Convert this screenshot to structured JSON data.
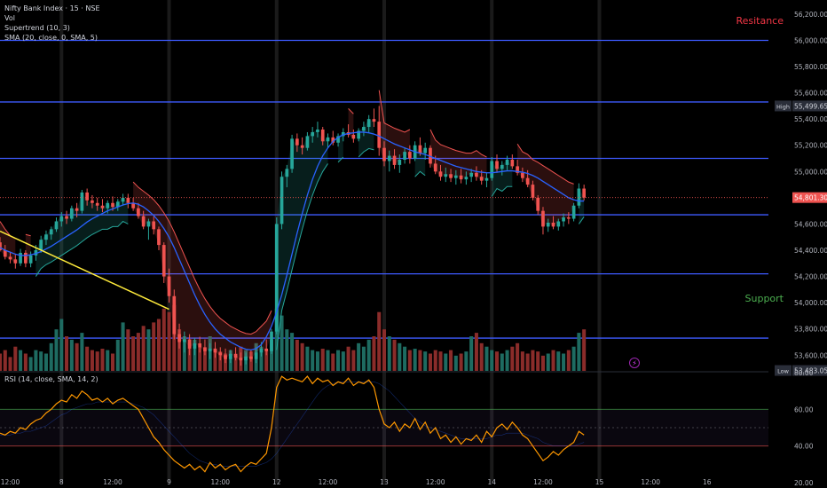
{
  "legend": {
    "symbol": "Nifty Bank Index · 15 · NSE",
    "vol": "Vol",
    "supertrend": "Supertrend (10, 3)",
    "sma": "SMA (20, close, 0, SMA, 5)",
    "rsi": "RSI (14, close, SMA, 14, 2)"
  },
  "annotations": {
    "resistance": "Resitance",
    "support": "Support"
  },
  "colors": {
    "up": "#26a69a",
    "down": "#ef5350",
    "sma": "#2962ff",
    "level": "#3d5afe",
    "trend": "#ffeb3b",
    "rsi": "#ff9800",
    "resistance_text": "#f23645",
    "support_text": "#4caf50"
  },
  "chart_data": {
    "type": "candlestick",
    "symbol": "Nifty Bank Index",
    "interval": "15",
    "exchange": "NSE",
    "y_range": [
      53480,
      56240
    ],
    "x_range": [
      0,
      150
    ],
    "price_ticks": [
      "56,200.00",
      "56,000.00",
      "55,800.00",
      "55,600.00",
      "55,400.00",
      "55,200.00",
      "55,000.00",
      "54,800.00",
      "54,600.00",
      "54,400.00",
      "54,200.00",
      "54,000.00",
      "53,800.00",
      "53,600.00"
    ],
    "price_tick_values": [
      56200,
      56000,
      55800,
      55600,
      55400,
      55200,
      55000,
      54800,
      54600,
      54400,
      54200,
      54000,
      53800,
      53600
    ],
    "x_ticks": [
      {
        "label": "12:00",
        "at": 2
      },
      {
        "label": "8",
        "at": 12
      },
      {
        "label": "12:00",
        "at": 22
      },
      {
        "label": "9",
        "at": 33
      },
      {
        "label": "12:00",
        "at": 43
      },
      {
        "label": "12",
        "at": 54
      },
      {
        "label": "12:00",
        "at": 64
      },
      {
        "label": "13",
        "at": 75
      },
      {
        "label": "12:00",
        "at": 85
      },
      {
        "label": "14",
        "at": 96
      },
      {
        "label": "12:00",
        "at": 106
      },
      {
        "label": "15",
        "at": 117
      },
      {
        "label": "12:00",
        "at": 127
      },
      {
        "label": "16",
        "at": 138
      }
    ],
    "session_lines": [
      12,
      33,
      54,
      75,
      96,
      117
    ],
    "horizontal_levels": [
      56000,
      55530,
      55100,
      54670,
      54220,
      53730
    ],
    "badges": [
      {
        "label": "High",
        "value": "55,499.65",
        "price": 55499.65
      },
      {
        "label": "",
        "value": "54,801.30",
        "price": 54801.3
      },
      {
        "label": "Low",
        "value": "53,483.05",
        "price": 53483.05
      }
    ],
    "trendline": [
      [
        0,
        54545
      ],
      [
        33,
        53950
      ]
    ],
    "candles": [
      [
        54460,
        54500,
        54390,
        54400
      ],
      [
        54400,
        54440,
        54330,
        54350
      ],
      [
        54350,
        54390,
        54300,
        54330
      ],
      [
        54330,
        54370,
        54260,
        54300
      ],
      [
        54300,
        54410,
        54280,
        54380
      ],
      [
        54380,
        54400,
        54270,
        54300
      ],
      [
        54300,
        54390,
        54270,
        54360
      ],
      [
        54360,
        54440,
        54320,
        54400
      ],
      [
        54400,
        54510,
        54380,
        54480
      ],
      [
        54480,
        54550,
        54440,
        54520
      ],
      [
        54520,
        54580,
        54480,
        54560
      ],
      [
        54560,
        54650,
        54540,
        54620
      ],
      [
        54620,
        54690,
        54580,
        54660
      ],
      [
        54660,
        54700,
        54600,
        54640
      ],
      [
        54640,
        54740,
        54620,
        54720
      ],
      [
        54720,
        54760,
        54650,
        54700
      ],
      [
        54700,
        54860,
        54680,
        54840
      ],
      [
        54840,
        54870,
        54740,
        54780
      ],
      [
        54780,
        54820,
        54720,
        54760
      ],
      [
        54760,
        54800,
        54700,
        54740
      ],
      [
        54740,
        54790,
        54690,
        54720
      ],
      [
        54720,
        54780,
        54680,
        54760
      ],
      [
        54760,
        54810,
        54700,
        54730
      ],
      [
        54730,
        54790,
        54700,
        54770
      ],
      [
        54770,
        54830,
        54740,
        54800
      ],
      [
        54800,
        54830,
        54720,
        54760
      ],
      [
        54760,
        54800,
        54700,
        54720
      ],
      [
        54720,
        54760,
        54640,
        54660
      ],
      [
        54660,
        54700,
        54560,
        54580
      ],
      [
        54580,
        54640,
        54480,
        54620
      ],
      [
        54620,
        54660,
        54520,
        54560
      ],
      [
        54560,
        54580,
        54400,
        54440
      ],
      [
        54440,
        54460,
        54150,
        54200
      ],
      [
        54200,
        54260,
        54000,
        54050
      ],
      [
        54050,
        54100,
        53720,
        53760
      ],
      [
        53760,
        53840,
        53650,
        53700
      ],
      [
        53700,
        53780,
        53620,
        53720
      ],
      [
        53720,
        53760,
        53600,
        53650
      ],
      [
        53650,
        53730,
        53600,
        53690
      ],
      [
        53690,
        53740,
        53620,
        53660
      ],
      [
        53660,
        53720,
        53600,
        53630
      ],
      [
        53630,
        53690,
        53570,
        53650
      ],
      [
        53650,
        53700,
        53580,
        53620
      ],
      [
        53620,
        53660,
        53560,
        53600
      ],
      [
        53600,
        53650,
        53540,
        53570
      ],
      [
        53570,
        53640,
        53540,
        53610
      ],
      [
        53610,
        53660,
        53560,
        53580
      ],
      [
        53580,
        53620,
        53520,
        53560
      ],
      [
        53560,
        53620,
        53530,
        53590
      ],
      [
        53590,
        53640,
        53550,
        53570
      ],
      [
        53570,
        53660,
        53540,
        53620
      ],
      [
        53620,
        53700,
        53590,
        53650
      ],
      [
        53650,
        53720,
        53600,
        53630
      ],
      [
        53630,
        53800,
        53610,
        53780
      ],
      [
        53780,
        54650,
        53760,
        54600
      ],
      [
        54600,
        55000,
        54560,
        54960
      ],
      [
        54960,
        55050,
        54880,
        55020
      ],
      [
        55020,
        55280,
        54990,
        55250
      ],
      [
        55250,
        55290,
        55150,
        55200
      ],
      [
        55200,
        55260,
        55130,
        55180
      ],
      [
        55180,
        55300,
        55160,
        55270
      ],
      [
        55270,
        55340,
        55220,
        55300
      ],
      [
        55300,
        55380,
        55260,
        55320
      ],
      [
        55320,
        55340,
        55200,
        55230
      ],
      [
        55230,
        55290,
        55180,
        55260
      ],
      [
        55260,
        55310,
        55200,
        55220
      ],
      [
        55220,
        55290,
        55190,
        55270
      ],
      [
        55270,
        55330,
        55230,
        55300
      ],
      [
        55300,
        55360,
        55260,
        55280
      ],
      [
        55280,
        55320,
        55220,
        55250
      ],
      [
        55250,
        55330,
        55230,
        55310
      ],
      [
        55310,
        55380,
        55270,
        55340
      ],
      [
        55340,
        55430,
        55300,
        55400
      ],
      [
        55400,
        55480,
        55340,
        55380
      ],
      [
        55380,
        55500,
        55120,
        55180
      ],
      [
        55180,
        55230,
        55040,
        55080
      ],
      [
        55080,
        55160,
        55000,
        55120
      ],
      [
        55120,
        55170,
        55020,
        55050
      ],
      [
        55050,
        55130,
        54990,
        55090
      ],
      [
        55090,
        55180,
        55060,
        55150
      ],
      [
        55150,
        55200,
        55060,
        55100
      ],
      [
        55100,
        55230,
        55080,
        55200
      ],
      [
        55200,
        55260,
        55120,
        55140
      ],
      [
        55140,
        55220,
        55090,
        55180
      ],
      [
        55180,
        55200,
        55030,
        55060
      ],
      [
        55060,
        55120,
        54980,
        55000
      ],
      [
        55000,
        55050,
        54930,
        54960
      ],
      [
        54960,
        55030,
        54920,
        54980
      ],
      [
        54980,
        55020,
        54920,
        54950
      ],
      [
        54950,
        55010,
        54900,
        54970
      ],
      [
        54970,
        55020,
        54910,
        54940
      ],
      [
        54940,
        55000,
        54900,
        54960
      ],
      [
        54960,
        55020,
        54920,
        54990
      ],
      [
        54990,
        55040,
        54930,
        54960
      ],
      [
        54960,
        55010,
        54900,
        54930
      ],
      [
        54930,
        54990,
        54880,
        54950
      ],
      [
        54950,
        55110,
        54930,
        55080
      ],
      [
        55080,
        55130,
        54990,
        55020
      ],
      [
        55020,
        55080,
        54970,
        55050
      ],
      [
        55050,
        55120,
        55010,
        55090
      ],
      [
        55090,
        55130,
        55020,
        55040
      ],
      [
        55040,
        55090,
        54970,
        54990
      ],
      [
        54990,
        55030,
        54920,
        54950
      ],
      [
        54950,
        55010,
        54880,
        54900
      ],
      [
        54900,
        54930,
        54780,
        54800
      ],
      [
        54800,
        54820,
        54670,
        54700
      ],
      [
        54700,
        54730,
        54520,
        54580
      ],
      [
        54580,
        54640,
        54540,
        54610
      ],
      [
        54610,
        54660,
        54560,
        54580
      ],
      [
        54580,
        54640,
        54550,
        54620
      ],
      [
        54620,
        54680,
        54580,
        54650
      ],
      [
        54650,
        54690,
        54600,
        54640
      ],
      [
        54640,
        54760,
        54620,
        54740
      ],
      [
        54740,
        54910,
        54720,
        54870
      ],
      [
        54870,
        54900,
        54780,
        54801.3
      ]
    ],
    "sma_values": [
      54420,
      54400,
      54385,
      54370,
      54360,
      54360,
      54365,
      54375,
      54390,
      54410,
      54430,
      54455,
      54480,
      54505,
      54530,
      54555,
      54585,
      54615,
      54640,
      54660,
      54680,
      54700,
      54715,
      54730,
      54745,
      54755,
      54760,
      54750,
      54730,
      54700,
      54665,
      54620,
      54565,
      54500,
      54420,
      54330,
      54240,
      54150,
      54060,
      53980,
      53910,
      53850,
      53800,
      53760,
      53730,
      53700,
      53680,
      53660,
      53645,
      53640,
      53650,
      53680,
      53740,
      53820,
      53930,
      54060,
      54210,
      54370,
      54530,
      54680,
      54820,
      54940,
      55040,
      55120,
      55180,
      55230,
      55260,
      55280,
      55290,
      55295,
      55300,
      55300,
      55295,
      55285,
      55270,
      55250,
      55230,
      55210,
      55195,
      55180,
      55165,
      55150,
      55140,
      55130,
      55115,
      55100,
      55085,
      55070,
      55055,
      55040,
      55030,
      55020,
      55010,
      55000,
      54995,
      54990,
      54990,
      54995,
      55000,
      55005,
      55005,
      55000,
      54995,
      54985,
      54970,
      54950,
      54925,
      54900,
      54875,
      54850,
      54825,
      54800,
      54785,
      54775,
      54775
    ],
    "volume_values": [
      0.25,
      0.3,
      0.2,
      0.35,
      0.3,
      0.25,
      0.2,
      0.3,
      0.28,
      0.25,
      0.4,
      0.6,
      0.75,
      0.5,
      0.45,
      0.4,
      0.55,
      0.35,
      0.3,
      0.28,
      0.32,
      0.3,
      0.25,
      0.45,
      0.7,
      0.6,
      0.5,
      0.55,
      0.65,
      0.6,
      0.7,
      0.75,
      0.9,
      0.85,
      0.95,
      0.6,
      0.5,
      0.4,
      0.45,
      0.35,
      0.3,
      0.5,
      0.3,
      0.28,
      0.25,
      0.3,
      0.22,
      0.35,
      0.3,
      0.28,
      0.4,
      0.35,
      0.3,
      0.45,
      0.9,
      0.8,
      0.6,
      0.55,
      0.45,
      0.4,
      0.35,
      0.3,
      0.28,
      0.32,
      0.3,
      0.25,
      0.3,
      0.28,
      0.35,
      0.3,
      0.4,
      0.35,
      0.45,
      0.5,
      0.85,
      0.6,
      0.5,
      0.45,
      0.4,
      0.35,
      0.3,
      0.32,
      0.3,
      0.28,
      0.25,
      0.3,
      0.28,
      0.25,
      0.3,
      0.22,
      0.25,
      0.28,
      0.5,
      0.55,
      0.4,
      0.35,
      0.3,
      0.28,
      0.25,
      0.3,
      0.35,
      0.4,
      0.28,
      0.25,
      0.3,
      0.28,
      0.22,
      0.25,
      0.3,
      0.28,
      0.25,
      0.3,
      0.35,
      0.55,
      0.6
    ],
    "rsi_range": [
      20,
      80
    ],
    "rsi_ticks": [
      "80.00",
      "60.00",
      "40.00",
      "20.00"
    ],
    "rsi_tick_values": [
      80,
      60,
      40,
      20
    ],
    "rsi_band": [
      40,
      60
    ],
    "rsi_values": [
      47,
      46,
      48,
      47,
      50,
      49,
      52,
      54,
      55,
      58,
      60,
      63,
      65,
      64,
      68,
      66,
      70,
      68,
      65,
      66,
      64,
      66,
      63,
      65,
      66,
      64,
      62,
      60,
      55,
      50,
      45,
      42,
      38,
      35,
      32,
      30,
      28,
      30,
      27,
      29,
      26,
      31,
      28,
      30,
      27,
      29,
      30,
      26,
      29,
      31,
      30,
      33,
      36,
      50,
      72,
      78,
      76,
      77,
      76,
      75,
      78,
      74,
      77,
      75,
      76,
      73,
      75,
      74,
      77,
      73,
      75,
      74,
      76,
      72,
      60,
      52,
      50,
      53,
      48,
      52,
      50,
      55,
      49,
      53,
      47,
      50,
      44,
      46,
      42,
      45,
      41,
      44,
      43,
      46,
      42,
      48,
      45,
      50,
      52,
      49,
      53,
      50,
      46,
      44,
      40,
      36,
      32,
      34,
      37,
      35,
      38,
      40,
      42,
      48,
      46
    ],
    "rsi_ma_values": [
      46,
      46,
      46,
      47,
      47,
      48,
      48,
      49,
      50,
      51,
      53,
      55,
      57,
      58,
      60,
      61,
      62,
      63,
      63,
      64,
      64,
      64,
      64,
      64,
      64,
      64,
      63,
      62,
      61,
      59,
      57,
      54,
      51,
      48,
      45,
      42,
      39,
      36,
      34,
      32,
      31,
      30,
      30,
      29,
      29,
      29,
      29,
      29,
      29,
      29,
      29,
      30,
      31,
      33,
      36,
      40,
      44,
      48,
      52,
      56,
      60,
      64,
      68,
      71,
      73,
      74,
      75,
      75,
      75,
      75,
      75,
      75,
      75,
      75,
      74,
      72,
      70,
      67,
      64,
      61,
      58,
      55,
      53,
      51,
      50,
      49,
      48,
      47,
      46,
      45,
      44,
      44,
      44,
      44,
      44,
      44,
      45,
      46,
      46,
      47,
      47,
      47,
      47,
      46,
      45,
      44,
      42,
      41,
      40,
      40,
      40,
      40,
      40,
      41,
      42
    ]
  }
}
